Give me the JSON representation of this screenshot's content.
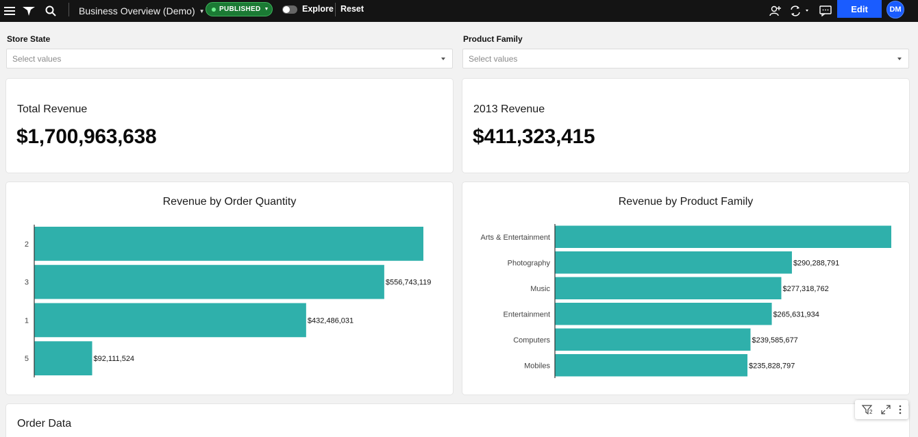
{
  "topbar": {
    "title": "Business Overview (Demo)",
    "status": "PUBLISHED",
    "explore_label": "Explore",
    "reset_label": "Reset",
    "edit_label": "Edit",
    "avatar_initials": "DM",
    "icons": [
      "menu-icon",
      "app-logo-icon",
      "search-icon",
      "add-user-icon",
      "sync-icon",
      "comment-icon"
    ]
  },
  "filters": {
    "store_state": {
      "label": "Store State",
      "placeholder": "Select values"
    },
    "product_family": {
      "label": "Product Family",
      "placeholder": "Select values"
    }
  },
  "kpis": {
    "total_revenue": {
      "label": "Total Revenue",
      "value": "$1,700,963,638"
    },
    "revenue_2013": {
      "label": "2013 Revenue",
      "value": "$411,323,415"
    }
  },
  "chart_data": [
    {
      "type": "bar",
      "orientation": "horizontal",
      "title": "Revenue by Order Quantity",
      "categories": [
        "2",
        "3",
        "1",
        "5"
      ],
      "values": [
        619000000,
        556743119,
        432486031,
        92111524
      ],
      "labels": [
        "",
        "$556,743,119",
        "$432,486,031",
        "$92,111,524"
      ],
      "color": "#2fb0ab"
    },
    {
      "type": "bar",
      "orientation": "horizontal",
      "title": "Revenue by Product Family",
      "categories": [
        "Arts & Entertainment",
        "Photography",
        "Music",
        "Entertainment",
        "Computers",
        "Mobiles"
      ],
      "values": [
        412000000,
        290288791,
        277318762,
        265631934,
        239585677,
        235828797
      ],
      "labels": [
        "",
        "$290,288,791",
        "$277,318,762",
        "$265,631,934",
        "$239,585,677",
        "$235,828,797"
      ],
      "color": "#2fb0ab"
    }
  ],
  "order_data": {
    "title": "Order Data",
    "filter_count": "2"
  },
  "colors": {
    "accent": "#1a5cff",
    "bar": "#2fb0ab",
    "published": "#1b7a34"
  }
}
